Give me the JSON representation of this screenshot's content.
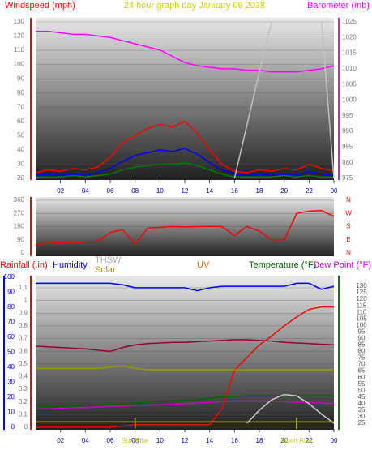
{
  "chart_data": [
    {
      "type": "line",
      "title": "24 hour graph day   January 06 2038",
      "y_label": "Windspeed (mph)",
      "y2_label": "Barometer (mb)",
      "x": [
        0,
        1,
        2,
        3,
        4,
        5,
        6,
        7,
        8,
        9,
        10,
        11,
        12,
        13,
        14,
        15,
        16,
        17,
        18,
        19,
        20,
        21,
        22,
        23,
        24
      ],
      "xticks": [
        {
          "value": 2,
          "label": "02"
        },
        {
          "value": 4,
          "label": "04"
        },
        {
          "value": 6,
          "label": "06"
        },
        {
          "value": 8,
          "label": "08"
        },
        10,
        12,
        14,
        16,
        18,
        20,
        22,
        {
          "value": 24,
          "label": "00"
        }
      ],
      "xlim": [
        0,
        24
      ],
      "ylim": [
        20,
        130
      ],
      "yticks": [
        20,
        30,
        40,
        50,
        60,
        70,
        80,
        90,
        100,
        110,
        120,
        130
      ],
      "y2lim": [
        975,
        1025
      ],
      "y2ticks": [
        975,
        980,
        985,
        990,
        995,
        1000,
        1005,
        1010,
        1015,
        1020,
        1025
      ],
      "series": [
        {
          "color": "#ff0000",
          "values": [
            24,
            26,
            25,
            27,
            26,
            28,
            35,
            45,
            50,
            55,
            58,
            56,
            60,
            52,
            40,
            30,
            25,
            24,
            26,
            25,
            27,
            26,
            30,
            27,
            25
          ]
        },
        {
          "color": "#0000ff",
          "values": [
            22,
            23,
            22,
            23,
            22,
            24,
            27,
            32,
            36,
            38,
            40,
            39,
            41,
            37,
            31,
            26,
            23,
            22,
            23,
            22,
            23,
            22,
            25,
            23,
            22
          ]
        },
        {
          "color": "#008000",
          "values": [
            21,
            21,
            21,
            22,
            21,
            22,
            23,
            26,
            28,
            29,
            30,
            30,
            31,
            29,
            26,
            23,
            21,
            21,
            21,
            21,
            22,
            21,
            22,
            21,
            21
          ]
        },
        {
          "color": "#ff00ff",
          "axis": "y2",
          "values": [
            1022,
            1022,
            1021.5,
            1021,
            1021,
            1020.5,
            1020,
            1019,
            1018,
            1017,
            1016,
            1014,
            1012,
            1011,
            1010.5,
            1010,
            1010,
            1009.5,
            1009.5,
            1009,
            1009,
            1009,
            1009.5,
            1010,
            1011
          ]
        },
        {
          "color": "#c0c0c0",
          "axis": "y2",
          "values": [
            null,
            null,
            null,
            null,
            null,
            null,
            null,
            null,
            null,
            null,
            null,
            null,
            null,
            null,
            null,
            null,
            975,
            992,
            1009,
            1025,
            null,
            null,
            null,
            1025,
            975
          ]
        }
      ]
    },
    {
      "type": "line",
      "x": [
        0,
        1,
        2,
        3,
        4,
        5,
        6,
        7,
        8,
        9,
        10,
        11,
        12,
        13,
        14,
        15,
        16,
        17,
        18,
        19,
        20,
        21,
        22,
        23,
        24
      ],
      "xlim": [
        0,
        24
      ],
      "ylim": [
        0,
        360
      ],
      "yticks": [
        0,
        90,
        180,
        270,
        360
      ],
      "y2ticks": [
        {
          "value": 0,
          "label": "N"
        },
        {
          "value": 90,
          "label": "E"
        },
        {
          "value": 180,
          "label": "S"
        },
        {
          "value": 270,
          "label": "W"
        },
        {
          "value": 360,
          "label": "N"
        }
      ],
      "series": [
        {
          "color": "#ff0000",
          "values": [
            60,
            65,
            70,
            65,
            75,
            80,
            140,
            160,
            60,
            170,
            175,
            180,
            178,
            180,
            182,
            180,
            120,
            180,
            150,
            90,
            90,
            270,
            285,
            290,
            250
          ]
        }
      ]
    },
    {
      "type": "line",
      "y_label": "Rainfall (.in)",
      "y3_label": "Humidity",
      "y2_label": "Temperature (°F)",
      "labels": {
        "thsw": "THSW",
        "solar": "Solar",
        "uv": "UV",
        "dew": "Dew Point (°F)"
      },
      "annotations": [
        {
          "x": 8,
          "text": "Sun Rise"
        },
        {
          "x": 21,
          "text": "Moon Rise"
        }
      ],
      "x": [
        0,
        1,
        2,
        3,
        4,
        5,
        6,
        7,
        8,
        9,
        10,
        11,
        12,
        13,
        14,
        15,
        16,
        17,
        18,
        19,
        20,
        21,
        22,
        23,
        24
      ],
      "xticks": [
        {
          "value": 2,
          "label": "02"
        },
        {
          "value": 4,
          "label": "04"
        },
        {
          "value": 6,
          "label": "06"
        },
        {
          "value": 8,
          "label": "08"
        },
        10,
        12,
        14,
        16,
        18,
        20,
        22,
        {
          "value": 24,
          "label": "00"
        }
      ],
      "xlim": [
        0,
        24
      ],
      "ylim": [
        0,
        1.1
      ],
      "yticks": [
        0,
        0.1,
        0.2,
        0.3,
        0.4,
        0.5,
        0.6,
        0.7,
        0.8,
        0.9,
        1,
        1.1
      ],
      "y3lim": [
        0,
        100
      ],
      "y3ticks": [
        0,
        10,
        20,
        30,
        40,
        50,
        60,
        70,
        80,
        90,
        100
      ],
      "y2lim": [
        25,
        130
      ],
      "y2ticks": [
        25,
        30,
        35,
        40,
        45,
        50,
        55,
        60,
        65,
        70,
        75,
        80,
        85,
        90,
        95,
        100,
        105,
        110,
        115,
        120,
        125,
        130
      ],
      "series": [
        {
          "color": "#ff0000",
          "values": [
            0,
            0,
            0,
            0,
            0,
            0,
            0,
            0.01,
            0.02,
            0.02,
            0.02,
            0.02,
            0.02,
            0.02,
            0.02,
            0.15,
            0.45,
            0.55,
            0.65,
            0.72,
            0.8,
            0.87,
            0.93,
            0.95,
            0.95
          ]
        },
        {
          "color": "#0000ff",
          "axis": "y3",
          "values": [
            96,
            96,
            96,
            96,
            96,
            96,
            96,
            95,
            93,
            93,
            93,
            93,
            93,
            91,
            93,
            94,
            94,
            94,
            94,
            94,
            94,
            96,
            96,
            92,
            94
          ]
        },
        {
          "color": "#990033",
          "axis": "y2",
          "values": [
            84,
            83.5,
            83,
            82.5,
            82,
            81,
            80,
            83,
            85,
            86,
            86.5,
            87,
            87,
            87.5,
            88,
            88.5,
            89,
            89,
            88.5,
            88,
            87,
            86.5,
            86,
            85.5,
            85
          ]
        },
        {
          "color": "#999900",
          "axis": "y2",
          "values": [
            67,
            67,
            67,
            67,
            67,
            67,
            68,
            69,
            67,
            66,
            66,
            66,
            66,
            66,
            66,
            66,
            66,
            66,
            66,
            66,
            66,
            66,
            66,
            66,
            66
          ]
        },
        {
          "color": "#006600",
          "axis": "y2",
          "values": [
            37,
            37.5,
            38,
            38,
            38.5,
            39,
            39.5,
            40,
            40.5,
            41,
            41.5,
            42,
            42.5,
            43,
            44,
            45,
            45.5,
            46,
            46,
            46,
            46,
            46,
            46,
            46,
            46
          ]
        },
        {
          "color": "#cc00cc",
          "axis": "y2",
          "values": [
            36,
            36,
            36.5,
            37,
            37,
            37.5,
            38,
            38,
            38.5,
            39,
            39,
            39.5,
            40,
            40.5,
            41,
            41.5,
            42,
            42,
            42,
            42,
            41.5,
            41,
            41,
            40.5,
            40
          ]
        },
        {
          "color": "#cccccc",
          "axis": "y2",
          "values": [
            null,
            null,
            null,
            null,
            null,
            null,
            null,
            null,
            null,
            null,
            null,
            null,
            null,
            null,
            null,
            null,
            null,
            25,
            35,
            43,
            47,
            46,
            40,
            32,
            25
          ]
        },
        {
          "color": "#cccc00",
          "axis": "y2",
          "values": [
            26,
            26,
            26,
            26,
            26,
            26,
            26,
            26,
            26,
            26,
            26,
            26,
            26,
            26,
            26,
            26,
            26,
            26,
            26,
            26,
            26,
            26,
            26,
            26,
            26
          ]
        }
      ]
    }
  ]
}
